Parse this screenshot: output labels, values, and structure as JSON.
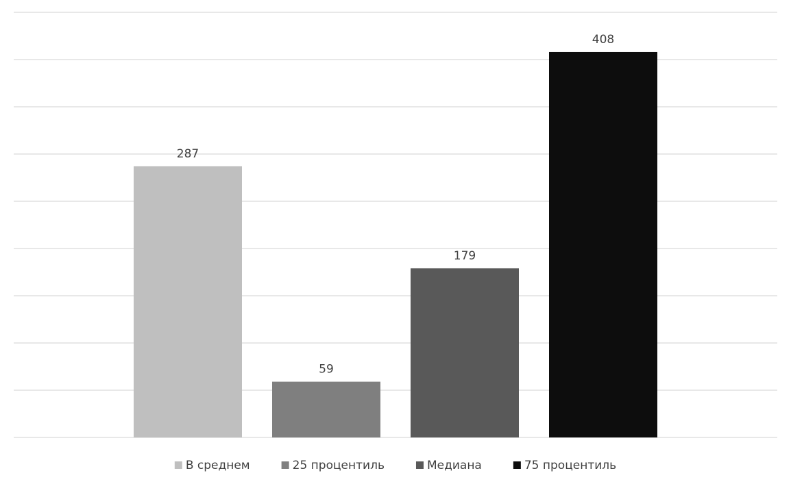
{
  "chart_data": {
    "type": "bar",
    "categories": [
      null
    ],
    "series": [
      {
        "name": "В среднем",
        "color": "#bfbfbf",
        "values": [
          287
        ]
      },
      {
        "name": "25 процентиль",
        "color": "#7f7f7f",
        "values": [
          59
        ]
      },
      {
        "name": "Медиана",
        "color": "#595959",
        "values": [
          179
        ]
      },
      {
        "name": "75 процентиль",
        "color": "#0d0d0d",
        "values": [
          408
        ]
      }
    ],
    "ylim": [
      0,
      450
    ],
    "yticks": [
      0,
      50,
      100,
      150,
      200,
      250,
      300,
      350,
      400,
      450
    ],
    "grid": true,
    "legend": "bottom"
  }
}
